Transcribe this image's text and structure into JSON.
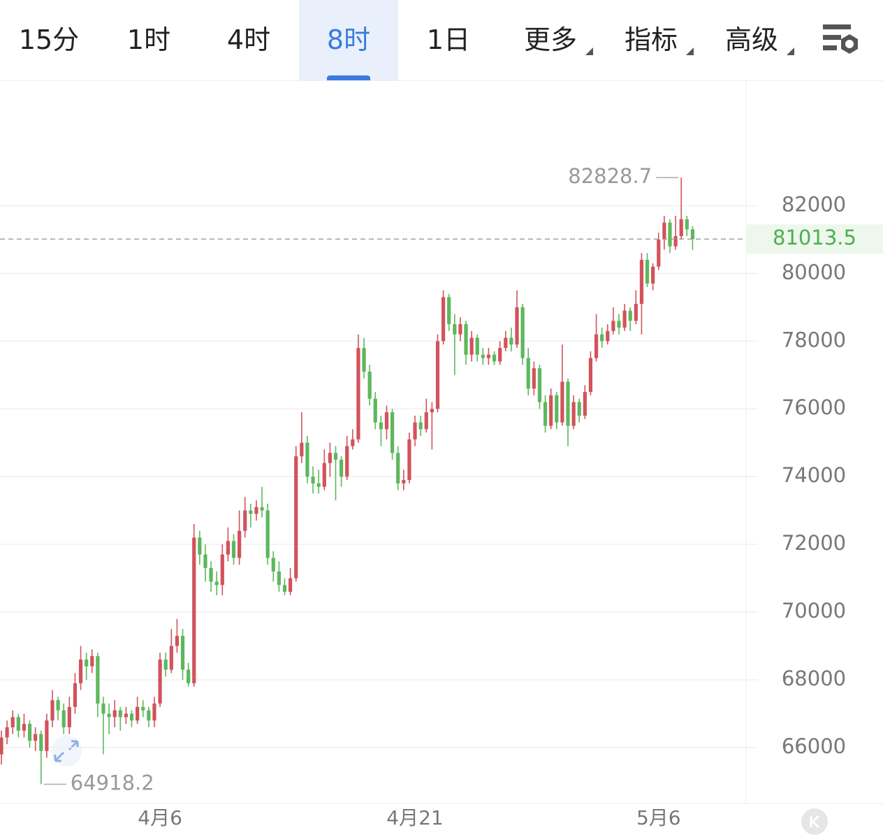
{
  "tabs": [
    "15分",
    "1时",
    "4时",
    "8时",
    "1日",
    "更多",
    "指标",
    "高级"
  ],
  "active_tab": 3,
  "chart_data": {
    "type": "candlestick",
    "up_color": "#d2525c",
    "down_color": "#5cb85c",
    "ylim": [
      64350,
      85700
    ],
    "yticks": [
      66000,
      68000,
      70000,
      72000,
      74000,
      76000,
      78000,
      80000,
      82000
    ],
    "grid": true,
    "categories": [
      null,
      null,
      null,
      null,
      null,
      null,
      null,
      null,
      null,
      null,
      null,
      null,
      null,
      null,
      null,
      null,
      null,
      null,
      null,
      null,
      null,
      null,
      null,
      null,
      null,
      null,
      null,
      null,
      "4月6",
      null,
      null,
      null,
      null,
      null,
      null,
      null,
      null,
      null,
      null,
      null,
      null,
      null,
      null,
      null,
      null,
      null,
      null,
      null,
      null,
      null,
      null,
      null,
      null,
      null,
      null,
      null,
      null,
      null,
      null,
      null,
      null,
      null,
      null,
      null,
      null,
      null,
      null,
      null,
      null,
      null,
      null,
      null,
      null,
      "4月21",
      null,
      null,
      null,
      null,
      null,
      null,
      null,
      null,
      null,
      null,
      null,
      null,
      null,
      null,
      null,
      null,
      null,
      null,
      null,
      null,
      null,
      null,
      null,
      null,
      null,
      null,
      null,
      null,
      null,
      null,
      null,
      null,
      null,
      null,
      null,
      null,
      null,
      null,
      null,
      null,
      null,
      null,
      "5月6",
      null,
      null,
      null,
      null
    ],
    "candles": [
      [
        65800,
        66500,
        65500,
        66300
      ],
      [
        66300,
        66800,
        66100,
        66600
      ],
      [
        66600,
        67100,
        66400,
        66900
      ],
      [
        66900,
        67000,
        66300,
        66500
      ],
      [
        66500,
        67000,
        66300,
        66700
      ],
      [
        66700,
        66800,
        66000,
        66200
      ],
      [
        66200,
        66600,
        65900,
        66400
      ],
      [
        66400,
        66500,
        64918.2,
        65900
      ],
      [
        65900,
        67000,
        65700,
        66800
      ],
      [
        66800,
        67700,
        66600,
        67400
      ],
      [
        67400,
        67500,
        66800,
        67100
      ],
      [
        67100,
        67300,
        66400,
        66600
      ],
      [
        66600,
        67500,
        66400,
        67200
      ],
      [
        67200,
        68200,
        67000,
        67900
      ],
      [
        67900,
        69000,
        67700,
        68600
      ],
      [
        68600,
        68800,
        68000,
        68400
      ],
      [
        68400,
        68900,
        68200,
        68700
      ],
      [
        68700,
        68800,
        66900,
        67300
      ],
      [
        67300,
        67500,
        65800,
        67000
      ],
      [
        67000,
        67300,
        66400,
        66900
      ],
      [
        66900,
        67400,
        66600,
        67100
      ],
      [
        67100,
        67200,
        66500,
        66900
      ],
      [
        66900,
        67200,
        66700,
        67000
      ],
      [
        67000,
        67100,
        66600,
        66800
      ],
      [
        66800,
        67500,
        66700,
        67200
      ],
      [
        67200,
        67400,
        66900,
        67100
      ],
      [
        67100,
        67200,
        66600,
        66800
      ],
      [
        66800,
        67500,
        66600,
        67300
      ],
      [
        67300,
        68800,
        67200,
        68600
      ],
      [
        68600,
        68800,
        68100,
        68300
      ],
      [
        68300,
        69500,
        68200,
        69000
      ],
      [
        69000,
        69800,
        68800,
        69300
      ],
      [
        69300,
        69500,
        68000,
        68300
      ],
      [
        68300,
        68500,
        67800,
        67900
      ],
      [
        67900,
        72600,
        67800,
        72200
      ],
      [
        72200,
        72400,
        71400,
        71700
      ],
      [
        71700,
        72000,
        70900,
        71300
      ],
      [
        71300,
        71500,
        70600,
        70900
      ],
      [
        70900,
        71200,
        70500,
        70800
      ],
      [
        70800,
        72000,
        70500,
        71700
      ],
      [
        71700,
        72500,
        71500,
        72100
      ],
      [
        72100,
        72300,
        71400,
        71600
      ],
      [
        71600,
        73000,
        71400,
        72400
      ],
      [
        72400,
        73400,
        72200,
        73000
      ],
      [
        73000,
        73200,
        72500,
        72900
      ],
      [
        72900,
        73300,
        72700,
        73100
      ],
      [
        73100,
        73700,
        72800,
        73000
      ],
      [
        73000,
        73200,
        71400,
        71600
      ],
      [
        71600,
        71800,
        70900,
        71200
      ],
      [
        71200,
        71500,
        70600,
        70800
      ],
      [
        70800,
        71000,
        70500,
        70600
      ],
      [
        70600,
        71300,
        70500,
        71000
      ],
      [
        71000,
        74900,
        70900,
        74600
      ],
      [
        74600,
        75900,
        74400,
        75000
      ],
      [
        75000,
        75200,
        73800,
        74000
      ],
      [
        74000,
        74300,
        73500,
        73800
      ],
      [
        73800,
        74200,
        73500,
        73700
      ],
      [
        73700,
        74800,
        73600,
        74400
      ],
      [
        74400,
        75000,
        74000,
        74700
      ],
      [
        74700,
        74900,
        73300,
        74500
      ],
      [
        74500,
        74600,
        73700,
        74000
      ],
      [
        74000,
        75200,
        73900,
        74900
      ],
      [
        74900,
        75400,
        74800,
        75100
      ],
      [
        75100,
        78200,
        75000,
        77800
      ],
      [
        77800,
        78100,
        76900,
        77100
      ],
      [
        77100,
        77300,
        76100,
        76300
      ],
      [
        76300,
        76500,
        75400,
        75600
      ],
      [
        75600,
        75800,
        74900,
        75400
      ],
      [
        75400,
        76100,
        75100,
        75900
      ],
      [
        75900,
        76000,
        74500,
        74700
      ],
      [
        74700,
        74900,
        73600,
        73800
      ],
      [
        73800,
        74200,
        73600,
        73900
      ],
      [
        73900,
        75300,
        73800,
        75100
      ],
      [
        75100,
        75800,
        74900,
        75600
      ],
      [
        75600,
        75800,
        75200,
        75400
      ],
      [
        75400,
        76300,
        75300,
        75900
      ],
      [
        75900,
        76200,
        74800,
        76000
      ],
      [
        76000,
        78200,
        75900,
        78000
      ],
      [
        78000,
        79500,
        77900,
        79300
      ],
      [
        79300,
        79400,
        78300,
        78500
      ],
      [
        78500,
        78800,
        77000,
        78200
      ],
      [
        78200,
        78700,
        78000,
        78500
      ],
      [
        78500,
        78600,
        77300,
        77600
      ],
      [
        77600,
        78300,
        77400,
        78100
      ],
      [
        78100,
        78200,
        77400,
        77600
      ],
      [
        77600,
        77800,
        77300,
        77500
      ],
      [
        77500,
        77800,
        77300,
        77600
      ],
      [
        77600,
        77700,
        77300,
        77400
      ],
      [
        77400,
        78000,
        77300,
        77800
      ],
      [
        77800,
        78300,
        77700,
        78100
      ],
      [
        78100,
        78400,
        77700,
        77900
      ],
      [
        77900,
        79500,
        77800,
        79000
      ],
      [
        79000,
        79100,
        77300,
        77500
      ],
      [
        77500,
        77800,
        76400,
        76600
      ],
      [
        76600,
        77400,
        76400,
        77200
      ],
      [
        77200,
        77300,
        76000,
        76200
      ],
      [
        76200,
        76400,
        75300,
        75500
      ],
      [
        75500,
        76600,
        75400,
        76400
      ],
      [
        76400,
        76500,
        75400,
        75600
      ],
      [
        75600,
        77900,
        75500,
        76800
      ],
      [
        76800,
        76900,
        74900,
        75500
      ],
      [
        75500,
        76400,
        75400,
        76200
      ],
      [
        76200,
        76300,
        75600,
        75800
      ],
      [
        75800,
        76700,
        75700,
        76500
      ],
      [
        76500,
        77700,
        76400,
        77500
      ],
      [
        77500,
        78800,
        77400,
        78200
      ],
      [
        78200,
        78400,
        77800,
        78000
      ],
      [
        78000,
        78500,
        77900,
        78300
      ],
      [
        78300,
        79000,
        78200,
        78600
      ],
      [
        78600,
        78800,
        78200,
        78400
      ],
      [
        78400,
        79100,
        78300,
        78900
      ],
      [
        78900,
        79000,
        78300,
        78600
      ],
      [
        78600,
        79500,
        78500,
        79100
      ],
      [
        79100,
        80600,
        78200,
        80400
      ],
      [
        80400,
        80600,
        79600,
        79700
      ],
      [
        79700,
        80300,
        79500,
        80200
      ],
      [
        80200,
        81200,
        80100,
        81000
      ],
      [
        81000,
        81700,
        80700,
        81500
      ],
      [
        81500,
        81600,
        80600,
        80800
      ],
      [
        80800,
        81700,
        80700,
        81100
      ],
      [
        81100,
        82828.7,
        81000,
        81600
      ],
      [
        81600,
        81700,
        81100,
        81300
      ],
      [
        81300,
        81400,
        80700,
        81013.5
      ]
    ]
  }
}
